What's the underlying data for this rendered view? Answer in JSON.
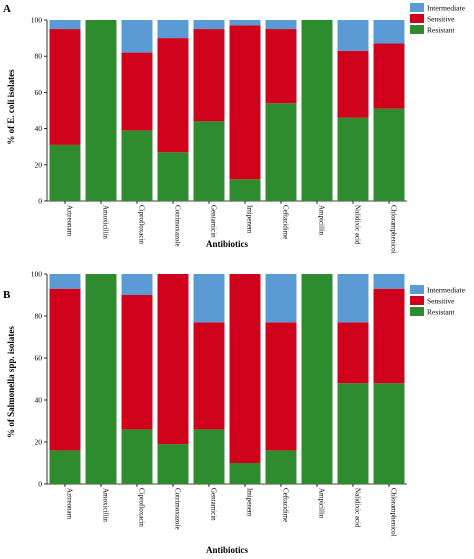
{
  "legend": [
    {
      "label": "Intermediate",
      "color": "#5b9bd5"
    },
    {
      "label": "Sensitive",
      "color": "#d0021b"
    },
    {
      "label": "Resistant",
      "color": "#2e8b2e"
    }
  ],
  "chart_data": [
    {
      "type": "bar",
      "stacked": true,
      "panel": "A",
      "ylabel": "% of E. coli isolates",
      "xlabel": "Antibiotics",
      "ylim": [
        0,
        100
      ],
      "yticks": [
        0,
        20,
        40,
        60,
        80,
        100
      ],
      "grid": false,
      "legend_position": "top-right",
      "categories": [
        "Aztreonam",
        "Amoxicillin",
        "Ciprofloxacin",
        "Cotrimoxazole",
        "Gentamicin",
        "Imipenem",
        "Ceftazidime",
        "Ampicillin",
        "Nalidixic acid",
        "Chloramphenicol"
      ],
      "series": [
        {
          "name": "Resistant",
          "values": [
            31,
            100,
            39,
            27,
            44,
            12,
            54,
            100,
            46,
            51
          ]
        },
        {
          "name": "Sensitive",
          "values": [
            64,
            0,
            43,
            63,
            51,
            85,
            41,
            0,
            37,
            36
          ]
        },
        {
          "name": "Intermediate",
          "values": [
            5,
            0,
            18,
            10,
            5,
            3,
            5,
            0,
            17,
            13
          ]
        }
      ]
    },
    {
      "type": "bar",
      "stacked": true,
      "panel": "B",
      "ylabel": "% of Salmonella spp. isolates",
      "xlabel": "Antibiotics",
      "ylim": [
        0,
        100
      ],
      "yticks": [
        0,
        20,
        40,
        60,
        80,
        100
      ],
      "grid": false,
      "legend_position": "top-right",
      "categories": [
        "Aztreonam",
        "Amoxicillin",
        "Ciprofloxacin",
        "Cotrimoxazole",
        "Gentamicin",
        "Imipenem",
        "Ceftazidime",
        "Ampicillin",
        "Nalidixic acid",
        "Chloramphenicol"
      ],
      "series": [
        {
          "name": "Resistant",
          "values": [
            16,
            100,
            26,
            19,
            26,
            10,
            16,
            100,
            48,
            48
          ]
        },
        {
          "name": "Sensitive",
          "values": [
            77,
            0,
            64,
            81,
            51,
            90,
            61,
            0,
            29,
            45
          ]
        },
        {
          "name": "Intermediate",
          "values": [
            7,
            0,
            10,
            0,
            23,
            0,
            23,
            0,
            23,
            7
          ]
        }
      ]
    }
  ]
}
